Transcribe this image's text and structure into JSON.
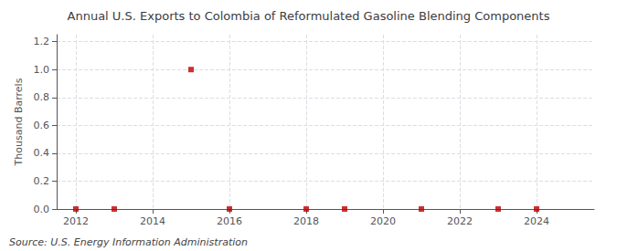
{
  "chart_data": {
    "type": "scatter",
    "title": "Annual U.S. Exports to Colombia of Reformulated Gasoline Blending Components",
    "ylabel": "Thousand Barrels",
    "annotations": [
      "Source: U.S. Energy Information Administration"
    ],
    "x": [
      2012,
      2013,
      2015,
      2016,
      2018,
      2019,
      2021,
      2023,
      2024
    ],
    "values": [
      0.0,
      0.0,
      1.0,
      0.0,
      0.0,
      0.0,
      0.0,
      0.0,
      0.0
    ],
    "color": "#BB0000",
    "marker": "square",
    "xlim": [
      2011.5,
      2025.5
    ],
    "xticks": [
      2012,
      2014,
      2016,
      2018,
      2020,
      2022,
      2024
    ],
    "ylim": [
      0.0,
      1.25
    ],
    "yticks": [
      {
        "value": 0.0,
        "label": "0.0"
      },
      0.2,
      0.4,
      0.6,
      0.8,
      {
        "value": 1.0,
        "label": "1.0"
      },
      1.2
    ],
    "grid": true
  }
}
